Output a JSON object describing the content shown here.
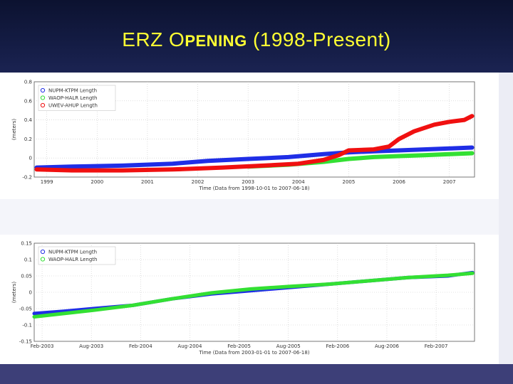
{
  "slide": {
    "title_big": "ERZ O",
    "title_small": "PENING",
    "title_rest": " (1998-Present)"
  },
  "colors": {
    "blue": "#1f2ee6",
    "green": "#33e033",
    "red": "#f01010",
    "title": "#ffff33"
  },
  "chart_data": [
    {
      "type": "line",
      "ylabel": "(meters)",
      "xlabel": "Time (Data from 1998-10-01 to 2007-06-18)",
      "xlim": [
        1998.75,
        2007.5
      ],
      "ylim": [
        -0.2,
        0.8
      ],
      "grid": true,
      "legend": "top-left",
      "x_ticks": [
        1999,
        2000,
        2001,
        2002,
        2003,
        2004,
        2005,
        2006,
        2007
      ],
      "x_tick_labels": [
        "1999",
        "2000",
        "2001",
        "2002",
        "2003",
        "2004",
        "2005",
        "2006",
        "2007"
      ],
      "y_ticks": [
        -0.2,
        0,
        0.2,
        0.4,
        0.6,
        0.8
      ],
      "y_tick_labels": [
        "-0.2",
        "0",
        "0.2",
        "0.4",
        "0.6",
        "0.8"
      ],
      "series": [
        {
          "name": "NUPM-KTPM Length",
          "color": "#1f2ee6",
          "x": [
            1998.8,
            1999.5,
            2000.5,
            2001.5,
            2002.2,
            2003.0,
            2003.8,
            2004.5,
            2005.0,
            2005.5,
            2006.0,
            2006.5,
            2007.0,
            2007.45
          ],
          "y": [
            -0.1,
            -0.09,
            -0.08,
            -0.06,
            -0.03,
            -0.01,
            0.01,
            0.04,
            0.06,
            0.07,
            0.08,
            0.09,
            0.1,
            0.11
          ]
        },
        {
          "name": "WAOP-HALR Length",
          "color": "#33e033",
          "x": [
            2003.0,
            2003.8,
            2004.5,
            2005.0,
            2005.5,
            2006.0,
            2006.5,
            2007.0,
            2007.45
          ],
          "y": [
            -0.09,
            -0.07,
            -0.04,
            -0.01,
            0.01,
            0.02,
            0.03,
            0.04,
            0.05
          ]
        },
        {
          "name": "UWEV-AHUP Length",
          "color": "#f01010",
          "x": [
            1998.8,
            1999.5,
            2000.5,
            2001.5,
            2002.5,
            2003.3,
            2004.0,
            2004.5,
            2004.8,
            2005.0,
            2005.5,
            2005.8,
            2006.0,
            2006.3,
            2006.7,
            2007.0,
            2007.3,
            2007.45
          ],
          "y": [
            -0.12,
            -0.13,
            -0.13,
            -0.12,
            -0.1,
            -0.08,
            -0.06,
            -0.02,
            0.03,
            0.08,
            0.09,
            0.12,
            0.2,
            0.28,
            0.35,
            0.38,
            0.4,
            0.44
          ]
        }
      ]
    },
    {
      "type": "line",
      "ylabel": "(meters)",
      "xlabel": "Time (Data from 2003-01-01 to 2007-06-18)",
      "xlim": [
        2003.0,
        2007.47
      ],
      "ylim": [
        -0.15,
        0.15
      ],
      "grid": true,
      "legend": "top-left",
      "x_ticks": [
        2003.08,
        2003.58,
        2004.08,
        2004.58,
        2005.08,
        2005.58,
        2006.08,
        2006.58,
        2007.08
      ],
      "x_tick_labels": [
        "Feb-2003",
        "Aug-2003",
        "Feb-2004",
        "Aug-2004",
        "Feb-2005",
        "Aug-2005",
        "Feb-2006",
        "Aug-2006",
        "Feb-2007"
      ],
      "y_ticks": [
        -0.15,
        -0.1,
        -0.05,
        0,
        0.05,
        0.1,
        0.15
      ],
      "y_tick_labels": [
        "-0.15",
        "-0.1",
        "-0.05",
        "0",
        "0.05",
        "0.1",
        "0.15"
      ],
      "series": [
        {
          "name": "NUPM-KTPM Length",
          "color": "#1f2ee6",
          "x": [
            2003.0,
            2003.3,
            2003.6,
            2004.0,
            2004.4,
            2004.8,
            2005.2,
            2005.6,
            2006.0,
            2006.4,
            2006.8,
            2007.2,
            2007.45
          ],
          "y": [
            -0.065,
            -0.058,
            -0.05,
            -0.04,
            -0.02,
            -0.005,
            0.005,
            0.015,
            0.025,
            0.035,
            0.045,
            0.05,
            0.06
          ]
        },
        {
          "name": "WAOP-HALR Length",
          "color": "#33e033",
          "x": [
            2003.0,
            2003.3,
            2003.6,
            2004.0,
            2004.4,
            2004.8,
            2005.2,
            2005.6,
            2006.0,
            2006.4,
            2006.8,
            2007.2,
            2007.45
          ],
          "y": [
            -0.075,
            -0.065,
            -0.055,
            -0.04,
            -0.02,
            -0.002,
            0.01,
            0.018,
            0.025,
            0.035,
            0.045,
            0.052,
            0.058
          ]
        }
      ]
    }
  ]
}
